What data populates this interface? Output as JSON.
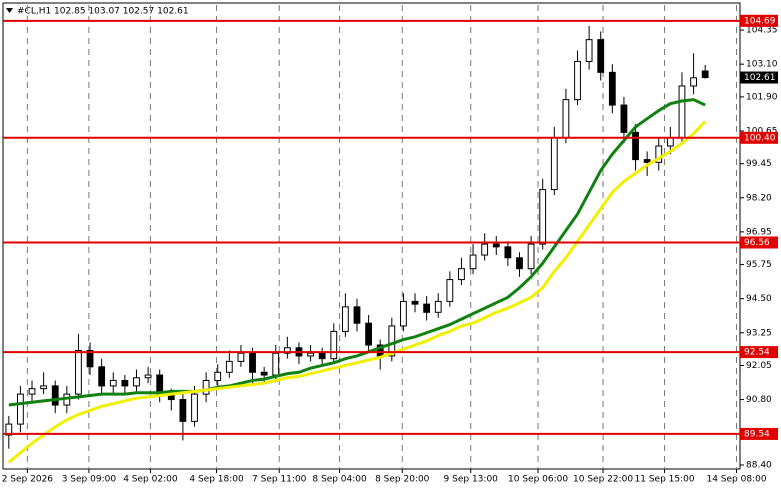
{
  "chart_data": {
    "type": "candlestick",
    "title": "#CL,H1  102.85 103.07 102.57 102.61",
    "candles": [
      [
        89.5,
        90.2,
        89.0,
        89.9
      ],
      [
        89.9,
        91.3,
        89.6,
        91.0
      ],
      [
        91.0,
        91.5,
        90.7,
        91.2
      ],
      [
        91.2,
        91.8,
        91.0,
        91.3
      ],
      [
        91.3,
        91.5,
        90.3,
        90.6
      ],
      [
        90.6,
        91.3,
        90.3,
        91.0
      ],
      [
        91.0,
        93.2,
        90.8,
        92.6
      ],
      [
        92.6,
        92.9,
        91.7,
        92.0
      ],
      [
        92.0,
        92.3,
        91.0,
        91.3
      ],
      [
        91.3,
        91.8,
        91.0,
        91.5
      ],
      [
        91.5,
        91.7,
        91.0,
        91.3
      ],
      [
        91.3,
        91.9,
        91.1,
        91.6
      ],
      [
        91.6,
        92.0,
        91.4,
        91.7
      ],
      [
        91.7,
        91.9,
        90.7,
        91.0
      ],
      [
        91.0,
        91.2,
        90.4,
        90.8
      ],
      [
        90.8,
        91.1,
        89.3,
        90.0
      ],
      [
        90.0,
        91.3,
        89.8,
        91.0
      ],
      [
        91.0,
        91.8,
        90.7,
        91.5
      ],
      [
        91.5,
        92.1,
        91.3,
        91.8
      ],
      [
        91.8,
        92.6,
        91.6,
        92.2
      ],
      [
        92.2,
        92.8,
        92.0,
        92.5
      ],
      [
        92.5,
        92.7,
        91.3,
        91.8
      ],
      [
        91.8,
        92.0,
        91.4,
        91.7
      ],
      [
        91.7,
        92.8,
        91.5,
        92.5
      ],
      [
        92.5,
        93.1,
        92.3,
        92.7
      ],
      [
        92.7,
        92.9,
        92.1,
        92.4
      ],
      [
        92.4,
        92.8,
        92.2,
        92.5
      ],
      [
        92.5,
        92.7,
        92.0,
        92.3
      ],
      [
        92.3,
        93.6,
        92.1,
        93.3
      ],
      [
        93.3,
        94.7,
        93.1,
        94.2
      ],
      [
        94.2,
        94.5,
        93.3,
        93.6
      ],
      [
        93.6,
        93.9,
        92.5,
        92.8
      ],
      [
        92.8,
        93.0,
        91.9,
        92.4
      ],
      [
        92.4,
        93.8,
        92.2,
        93.5
      ],
      [
        93.5,
        94.7,
        93.3,
        94.4
      ],
      [
        94.4,
        94.7,
        94.0,
        94.3
      ],
      [
        94.3,
        94.6,
        93.7,
        94.0
      ],
      [
        94.0,
        94.7,
        93.8,
        94.4
      ],
      [
        94.4,
        95.5,
        94.2,
        95.2
      ],
      [
        95.2,
        96.0,
        95.0,
        95.6
      ],
      [
        95.6,
        96.5,
        95.4,
        96.1
      ],
      [
        96.1,
        96.9,
        95.9,
        96.5
      ],
      [
        96.5,
        96.8,
        96.1,
        96.4
      ],
      [
        96.4,
        96.6,
        95.7,
        96.0
      ],
      [
        96.0,
        96.2,
        95.3,
        95.6
      ],
      [
        95.6,
        96.8,
        95.4,
        96.5
      ],
      [
        96.5,
        98.9,
        96.3,
        98.5
      ],
      [
        98.5,
        100.8,
        98.3,
        100.4
      ],
      [
        100.4,
        102.2,
        100.2,
        101.8
      ],
      [
        101.8,
        103.6,
        101.6,
        103.2
      ],
      [
        103.2,
        104.5,
        102.9,
        104.0
      ],
      [
        104.0,
        104.3,
        102.5,
        102.8
      ],
      [
        102.8,
        103.1,
        101.3,
        101.6
      ],
      [
        101.6,
        101.9,
        100.2,
        100.6
      ],
      [
        100.6,
        100.9,
        99.2,
        99.6
      ],
      [
        99.6,
        99.9,
        99.0,
        99.5
      ],
      [
        99.5,
        100.4,
        99.2,
        100.1
      ],
      [
        100.1,
        100.8,
        99.8,
        100.4
      ],
      [
        100.4,
        102.8,
        100.2,
        102.3
      ],
      [
        102.3,
        103.5,
        102.0,
        102.6
      ],
      [
        102.85,
        103.07,
        102.57,
        102.61
      ]
    ],
    "series": [
      {
        "color": "#108010",
        "values": [
          90.6,
          90.65,
          90.7,
          90.75,
          90.8,
          90.85,
          90.9,
          90.95,
          91.0,
          91.0,
          91.0,
          91.05,
          91.05,
          91.05,
          91.1,
          91.1,
          91.1,
          91.15,
          91.25,
          91.3,
          91.4,
          91.5,
          91.55,
          91.65,
          91.75,
          91.8,
          91.95,
          92.05,
          92.15,
          92.3,
          92.4,
          92.55,
          92.7,
          92.85,
          93.0,
          93.1,
          93.25,
          93.4,
          93.55,
          93.75,
          93.95,
          94.15,
          94.35,
          94.55,
          94.9,
          95.3,
          95.8,
          96.4,
          97.0,
          97.6,
          98.4,
          99.2,
          99.8,
          100.3,
          100.8,
          101.1,
          101.4,
          101.65,
          101.75,
          101.8,
          101.6
        ]
      },
      {
        "color": "#f0f000",
        "values": [
          88.5,
          88.85,
          89.2,
          89.5,
          89.8,
          90.05,
          90.25,
          90.4,
          90.55,
          90.65,
          90.75,
          90.85,
          90.9,
          90.95,
          91.0,
          91.05,
          91.1,
          91.15,
          91.2,
          91.25,
          91.3,
          91.35,
          91.4,
          91.5,
          91.6,
          91.65,
          91.75,
          91.85,
          91.95,
          92.05,
          92.15,
          92.25,
          92.35,
          92.5,
          92.65,
          92.8,
          92.95,
          93.15,
          93.3,
          93.5,
          93.6,
          93.8,
          94.0,
          94.15,
          94.35,
          94.55,
          94.9,
          95.5,
          96.0,
          96.6,
          97.2,
          97.8,
          98.4,
          98.8,
          99.1,
          99.4,
          99.65,
          99.9,
          100.2,
          100.55,
          101.0
        ]
      }
    ],
    "levels": [
      104.69,
      {
        "value": 100.4,
        "label": "100.40"
      },
      96.56,
      92.54,
      89.54
    ],
    "level_color": "#e00000",
    "ylim": [
      88.29,
      105.27
    ],
    "yticks": [
      {
        "value": 88.4,
        "label": "88.40"
      },
      {
        "value": 90.8,
        "label": "90.80"
      },
      92.05,
      93.25,
      {
        "value": 94.5,
        "label": "94.50"
      },
      95.75,
      96.95,
      {
        "value": 98.2,
        "label": "98.20"
      },
      99.45,
      100.65,
      {
        "value": 101.9,
        "label": "101.90"
      },
      {
        "value": 103.1,
        "label": "103.10"
      },
      104.35
    ],
    "xlim": [
      -0.5,
      63
    ],
    "xticks": [
      {
        "value": 1.6,
        "label": "2 Sep 2026"
      },
      {
        "value": 6.9,
        "label": "3 Sep 09:00"
      },
      {
        "value": 12.2,
        "label": "4 Sep 02:00"
      },
      {
        "value": 17.9,
        "label": "4 Sep 18:00"
      },
      {
        "value": 23.3,
        "label": "7 Sep 11:00"
      },
      {
        "value": 28.5,
        "label": "8 Sep 04:00"
      },
      {
        "value": 33.9,
        "label": "8 Sep 20:00"
      },
      {
        "value": 39.8,
        "label": "9 Sep 13:00"
      },
      {
        "value": 45.6,
        "label": "10 Sep 06:00"
      },
      {
        "value": 51.2,
        "label": "10 Sep 22:00"
      },
      {
        "value": 56.5,
        "label": "11 Sep 15:00"
      },
      {
        "value": 62.7,
        "label": "14 Sep 08:00"
      }
    ],
    "grid": "x"
  }
}
